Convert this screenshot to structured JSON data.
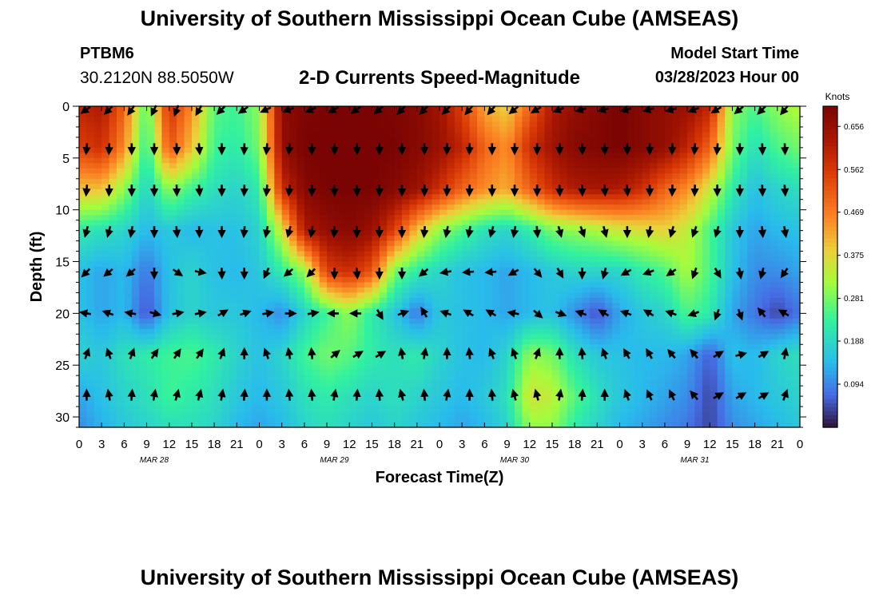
{
  "page": {
    "title": "University of Southern Mississippi Ocean Cube (AMSEAS)",
    "bottom_title": "University of Southern Mississippi Ocean Cube (AMSEAS)",
    "station_name": "PTBM6",
    "station_coords": "30.2120N  88.5050W",
    "plot_title": "2-D Currents Speed-Magnitude",
    "model_start_label": "Model Start Time",
    "model_start_value": "03/28/2023 Hour 00"
  },
  "chart_data": {
    "type": "heatmap",
    "title": "2-D Currents Speed-Magnitude",
    "xlabel": "Forecast Time(Z)",
    "ylabel": "Depth (ft)",
    "x_ticks": [
      "0",
      "3",
      "6",
      "9",
      "12",
      "15",
      "18",
      "21",
      "0",
      "3",
      "6",
      "9",
      "12",
      "15",
      "18",
      "21",
      "0",
      "3",
      "6",
      "9",
      "12",
      "15",
      "18",
      "21",
      "0",
      "3",
      "6",
      "9",
      "12",
      "15",
      "18",
      "21",
      "0"
    ],
    "day_labels": [
      "MAR 28",
      "MAR 29",
      "MAR 30",
      "MAR 31"
    ],
    "xlim_hours": [
      0,
      96
    ],
    "y_ticks": [
      "0",
      "5",
      "10",
      "15",
      "20",
      "25",
      "30"
    ],
    "ylim_ft": [
      0,
      31
    ],
    "colorbar_label": "Knots",
    "colorbar_ticks": [
      "0.656",
      "0.562",
      "0.469",
      "0.375",
      "0.281",
      "0.188",
      "0.094"
    ],
    "colorbar_range": [
      0,
      0.7
    ],
    "colors": {
      "lowest": "#30123b",
      "low": "#4686fb",
      "mid": "#a4fc3c",
      "high": "#fb8022",
      "highest": "#7a0403"
    },
    "grid_hours": [
      0,
      3,
      6,
      9,
      12,
      15,
      18,
      21,
      24,
      27,
      30,
      33,
      36,
      39,
      42,
      45,
      48,
      51,
      54,
      57,
      60,
      63,
      66,
      69,
      72,
      75,
      78,
      81,
      84,
      87,
      90,
      93,
      96
    ],
    "grid_depths_ft": [
      0,
      4,
      8,
      12,
      16,
      20,
      24,
      28,
      31
    ],
    "speed_knots": [
      [
        0.6,
        0.62,
        0.5,
        0.25,
        0.58,
        0.45,
        0.26,
        0.24,
        0.3,
        0.67,
        0.69,
        0.7,
        0.7,
        0.7,
        0.69,
        0.68,
        0.64,
        0.55,
        0.42,
        0.38,
        0.5,
        0.62,
        0.66,
        0.68,
        0.7,
        0.68,
        0.66,
        0.65,
        0.6,
        0.3,
        0.25,
        0.3,
        0.33
      ],
      [
        0.55,
        0.58,
        0.45,
        0.22,
        0.52,
        0.4,
        0.24,
        0.22,
        0.28,
        0.66,
        0.7,
        0.7,
        0.7,
        0.7,
        0.7,
        0.68,
        0.65,
        0.6,
        0.5,
        0.45,
        0.58,
        0.64,
        0.68,
        0.69,
        0.7,
        0.68,
        0.66,
        0.6,
        0.5,
        0.28,
        0.2,
        0.25,
        0.28
      ],
      [
        0.4,
        0.4,
        0.3,
        0.18,
        0.3,
        0.24,
        0.2,
        0.18,
        0.22,
        0.58,
        0.68,
        0.7,
        0.7,
        0.7,
        0.68,
        0.65,
        0.58,
        0.5,
        0.45,
        0.42,
        0.5,
        0.58,
        0.62,
        0.63,
        0.62,
        0.58,
        0.5,
        0.45,
        0.35,
        0.22,
        0.15,
        0.18,
        0.2
      ],
      [
        0.22,
        0.2,
        0.18,
        0.14,
        0.16,
        0.14,
        0.15,
        0.15,
        0.18,
        0.35,
        0.62,
        0.66,
        0.68,
        0.65,
        0.55,
        0.4,
        0.3,
        0.25,
        0.2,
        0.18,
        0.22,
        0.28,
        0.3,
        0.32,
        0.35,
        0.36,
        0.38,
        0.34,
        0.25,
        0.16,
        0.12,
        0.14,
        0.15
      ],
      [
        0.15,
        0.12,
        0.14,
        0.08,
        0.15,
        0.18,
        0.15,
        0.14,
        0.16,
        0.22,
        0.3,
        0.55,
        0.58,
        0.52,
        0.28,
        0.22,
        0.18,
        0.15,
        0.14,
        0.12,
        0.14,
        0.16,
        0.18,
        0.18,
        0.18,
        0.22,
        0.25,
        0.32,
        0.25,
        0.15,
        0.1,
        0.1,
        0.12
      ],
      [
        0.15,
        0.12,
        0.14,
        0.05,
        0.15,
        0.18,
        0.16,
        0.16,
        0.14,
        0.1,
        0.18,
        0.24,
        0.3,
        0.22,
        0.16,
        0.08,
        0.16,
        0.15,
        0.14,
        0.12,
        0.14,
        0.15,
        0.1,
        0.05,
        0.12,
        0.16,
        0.18,
        0.25,
        0.22,
        0.12,
        0.08,
        0.04,
        0.08
      ],
      [
        0.18,
        0.16,
        0.2,
        0.22,
        0.24,
        0.25,
        0.22,
        0.18,
        0.15,
        0.18,
        0.24,
        0.28,
        0.26,
        0.22,
        0.2,
        0.22,
        0.18,
        0.15,
        0.14,
        0.18,
        0.3,
        0.28,
        0.2,
        0.16,
        0.15,
        0.14,
        0.14,
        0.12,
        0.06,
        0.15,
        0.14,
        0.18,
        0.2
      ],
      [
        0.12,
        0.15,
        0.18,
        0.2,
        0.24,
        0.22,
        0.2,
        0.16,
        0.14,
        0.16,
        0.2,
        0.22,
        0.2,
        0.18,
        0.2,
        0.18,
        0.16,
        0.14,
        0.16,
        0.2,
        0.36,
        0.34,
        0.26,
        0.2,
        0.16,
        0.14,
        0.12,
        0.1,
        0.04,
        0.12,
        0.14,
        0.16,
        0.18
      ],
      [
        0.1,
        0.13,
        0.16,
        0.18,
        0.2,
        0.2,
        0.18,
        0.14,
        0.12,
        0.14,
        0.18,
        0.2,
        0.18,
        0.16,
        0.18,
        0.16,
        0.14,
        0.12,
        0.14,
        0.18,
        0.3,
        0.3,
        0.22,
        0.18,
        0.14,
        0.12,
        0.1,
        0.08,
        0.04,
        0.1,
        0.12,
        0.14,
        0.16
      ]
    ],
    "arrow_hours": [
      1,
      4,
      7,
      10,
      13,
      16,
      19,
      22,
      25,
      28,
      31,
      34,
      37,
      40,
      43,
      46,
      49,
      52,
      55,
      58,
      61,
      64,
      67,
      70,
      73,
      76,
      79,
      82,
      85,
      88,
      91,
      94
    ],
    "arrow_depths_ft": [
      0,
      4,
      8,
      12,
      16,
      20,
      24,
      28
    ],
    "arrow_direction_deg": [
      [
        235,
        225,
        215,
        205,
        200,
        210,
        225,
        235,
        245,
        250,
        245,
        240,
        235,
        230,
        225,
        225,
        225,
        220,
        220,
        230,
        240,
        250,
        255,
        255,
        255,
        255,
        255,
        250,
        240,
        230,
        225,
        220
      ],
      [
        185,
        182,
        180,
        180,
        178,
        175,
        180,
        182,
        185,
        185,
        180,
        178,
        178,
        180,
        180,
        180,
        182,
        182,
        180,
        180,
        180,
        180,
        178,
        178,
        180,
        180,
        182,
        185,
        185,
        180,
        178,
        178
      ],
      [
        185,
        182,
        180,
        180,
        178,
        175,
        180,
        182,
        185,
        185,
        180,
        178,
        178,
        180,
        180,
        180,
        182,
        182,
        180,
        180,
        180,
        178,
        178,
        176,
        176,
        180,
        182,
        182,
        180,
        180,
        178,
        176
      ],
      [
        195,
        195,
        190,
        180,
        175,
        178,
        180,
        185,
        190,
        195,
        190,
        185,
        182,
        180,
        180,
        185,
        190,
        190,
        195,
        190,
        175,
        165,
        160,
        165,
        180,
        190,
        195,
        200,
        195,
        180,
        175,
        170
      ],
      [
        225,
        230,
        230,
        180,
        125,
        100,
        178,
        180,
        205,
        230,
        225,
        180,
        175,
        180,
        180,
        230,
        260,
        265,
        265,
        240,
        140,
        150,
        180,
        195,
        240,
        250,
        235,
        200,
        150,
        170,
        195,
        215
      ],
      [
        280,
        290,
        280,
        105,
        80,
        80,
        60,
        70,
        80,
        90,
        80,
        270,
        270,
        150,
        70,
        330,
        290,
        300,
        300,
        280,
        130,
        110,
        290,
        300,
        290,
        300,
        290,
        250,
        200,
        160,
        320,
        300
      ],
      [
        20,
        340,
        20,
        35,
        35,
        35,
        20,
        0,
        340,
        350,
        355,
        50,
        60,
        60,
        350,
        10,
        0,
        355,
        340,
        340,
        20,
        0,
        355,
        340,
        330,
        330,
        320,
        320,
        60,
        75,
        60,
        10
      ],
      [
        0,
        350,
        5,
        10,
        15,
        15,
        10,
        5,
        0,
        355,
        355,
        10,
        5,
        355,
        345,
        355,
        10,
        0,
        355,
        345,
        345,
        10,
        5,
        0,
        340,
        335,
        335,
        320,
        60,
        60,
        60,
        20
      ]
    ]
  }
}
